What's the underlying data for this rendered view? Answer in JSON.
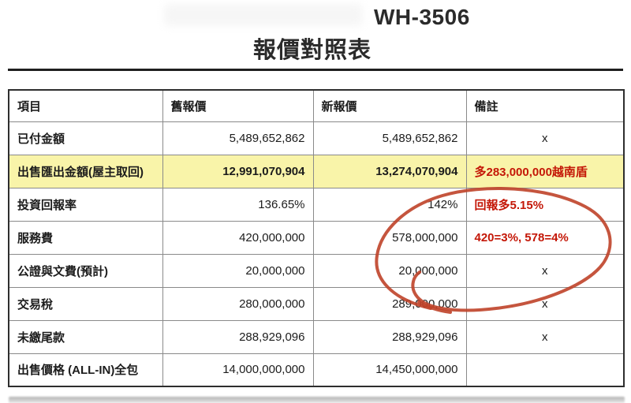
{
  "header": {
    "code": "WH-3506",
    "title": "報價對照表"
  },
  "table": {
    "columns": [
      "項目",
      "舊報價",
      "新報價",
      "備註"
    ],
    "rows": [
      {
        "item": "已付金額",
        "old": "5,489,652,862",
        "new": "5,489,652,862",
        "note": "x",
        "note_type": "plain",
        "highlight": false
      },
      {
        "item": "出售匯出金額(屋主取回)",
        "old": "12,991,070,904",
        "new": "13,274,070,904",
        "note": "多283,000,000越南盾",
        "note_type": "red",
        "highlight": true
      },
      {
        "item": "投資回報率",
        "old": "136.65%",
        "new": "142%",
        "note": "回報多5.15%",
        "note_type": "red",
        "highlight": false
      },
      {
        "item": "服務費",
        "old": "420,000,000",
        "new": "578,000,000",
        "note": "420=3%, 578=4%",
        "note_type": "red",
        "highlight": false
      },
      {
        "item": "公證與文費(預計)",
        "old": "20,000,000",
        "new": "20,000,000",
        "note": "x",
        "note_type": "plain",
        "highlight": false
      },
      {
        "item": "交易稅",
        "old": "280,000,000",
        "new": "289,000,000",
        "note": "x",
        "note_type": "plain",
        "highlight": false
      },
      {
        "item": "未繳尾款",
        "old": "288,929,096",
        "new": "288,929,096",
        "note": "x",
        "note_type": "plain",
        "highlight": false
      },
      {
        "item": "出售價格 (ALL-IN)全包",
        "old": "14,000,000,000",
        "new": "14,450,000,000",
        "note": "",
        "note_type": "plain",
        "highlight": false
      }
    ]
  },
  "annotation": {
    "label": "hand-drawn red circle around new service fee and notes"
  },
  "colors": {
    "highlight_row": "#f9f4a9",
    "red_text": "#c41707",
    "annotation_red": "#bf4229",
    "border_dark": "#2e2e2e",
    "border_light": "#8a8a8a"
  }
}
